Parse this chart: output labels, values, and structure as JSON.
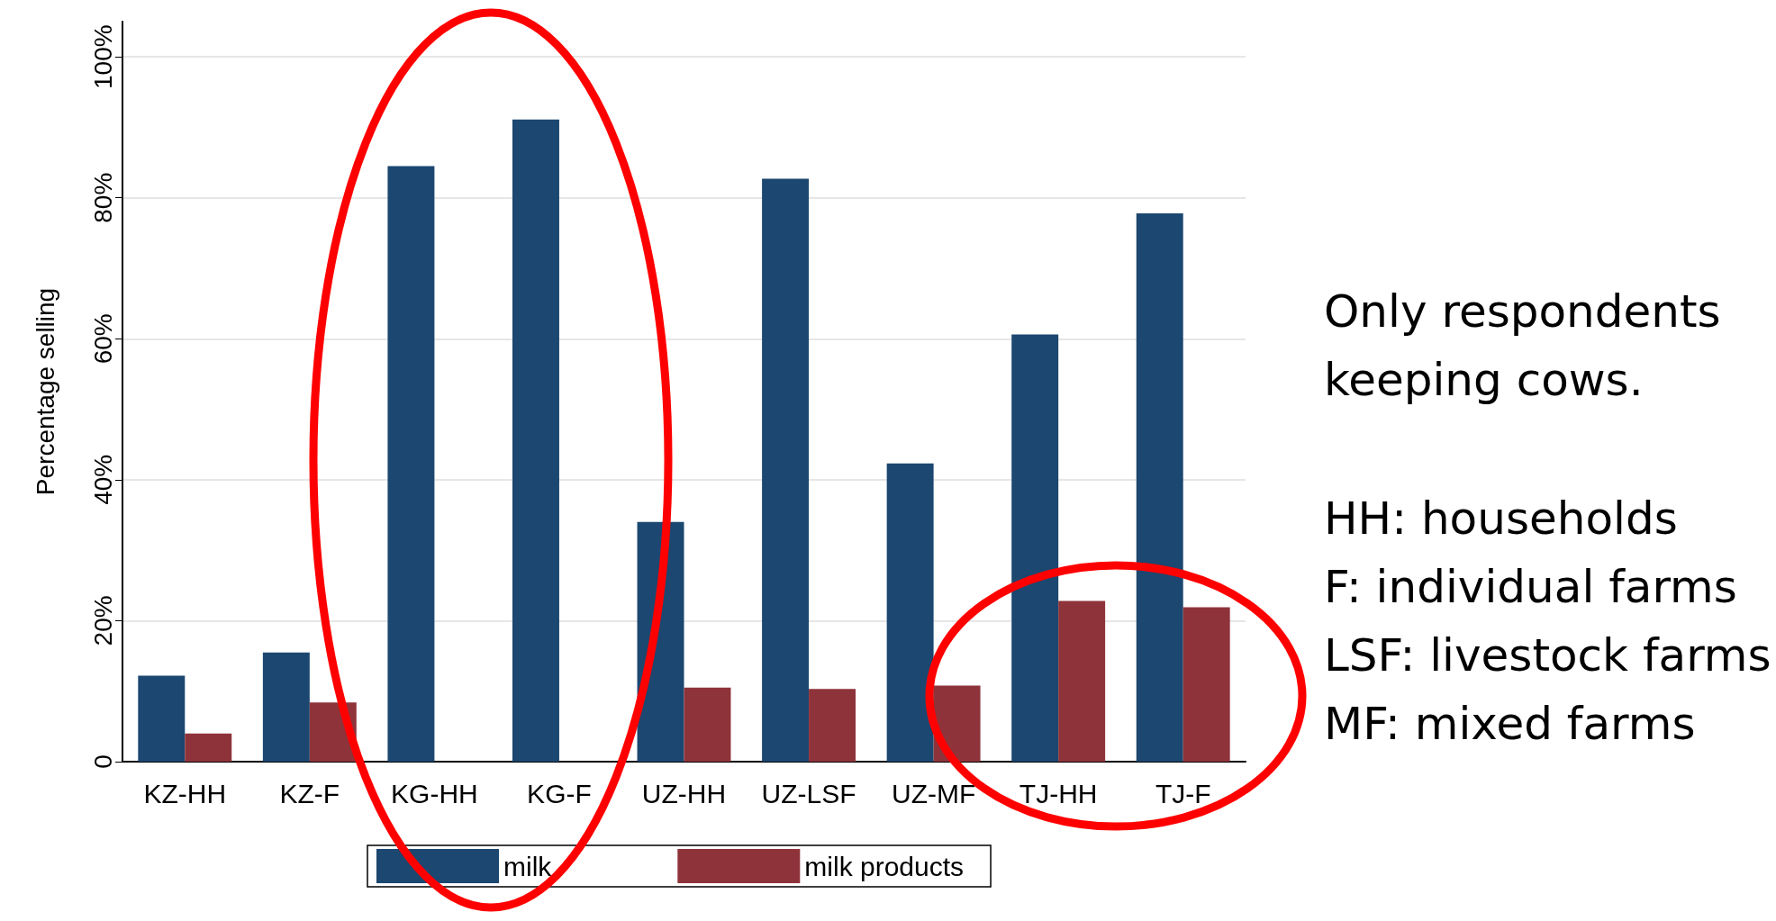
{
  "chart_data": {
    "type": "bar",
    "ylabel": "Percentage selling",
    "categories": [
      "KZ-HH",
      "KZ-F",
      "KG-HH",
      "KG-F",
      "UZ-HH",
      "UZ-LSF",
      "UZ-MF",
      "TJ-HH",
      "TJ-F"
    ],
    "series": [
      {
        "name": "milk",
        "color": "#1b4770",
        "values": [
          12.2,
          15.5,
          84.5,
          91.1,
          34.0,
          82.7,
          42.3,
          60.6,
          77.8
        ]
      },
      {
        "name": "milk products",
        "color": "#8f333b",
        "values": [
          4.0,
          8.4,
          0,
          0,
          10.5,
          10.3,
          10.8,
          22.8,
          21.9
        ]
      }
    ],
    "ylim": [
      0,
      105
    ],
    "yticks": [
      {
        "value": 0,
        "label": "0"
      },
      {
        "value": 20,
        "label": "20%"
      },
      {
        "value": 40,
        "label": "40%"
      },
      {
        "value": 60,
        "label": "60%"
      },
      {
        "value": 80,
        "label": "80%"
      },
      {
        "value": 100,
        "label": "100%"
      }
    ],
    "grid": "y",
    "legend": "bottom",
    "annotations": [
      "Only respondents\nkeeping cows.",
      "HH: households\nF: individual farms\nLSF: livestock farms\nMF: mixed farms"
    ]
  }
}
